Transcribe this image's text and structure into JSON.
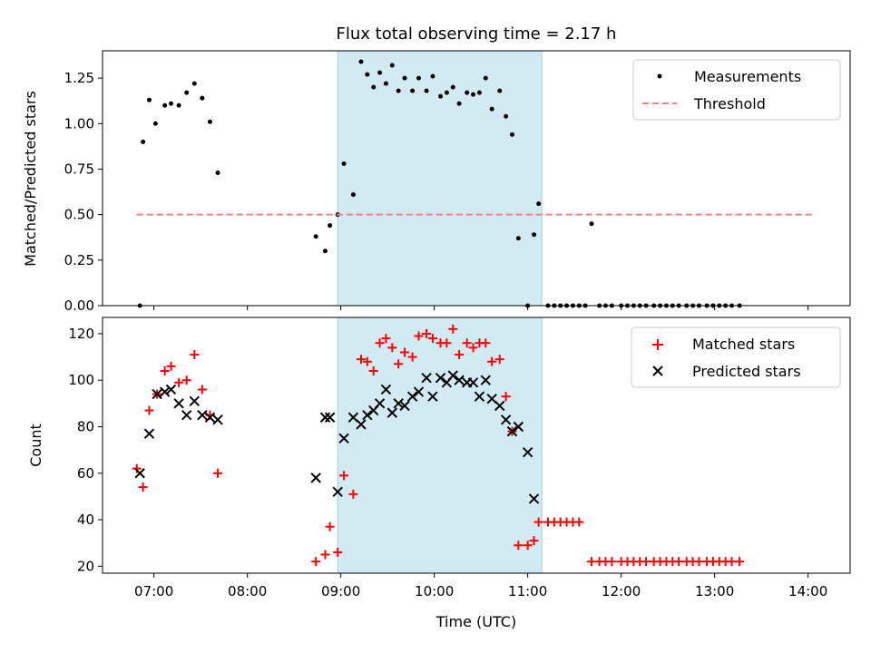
{
  "chart_data": [
    {
      "type": "scatter",
      "title": "Flux total observing time = 2.17 h",
      "xlabel": "",
      "ylabel": "Matched/Predicted stars",
      "ylim": [
        0,
        1.4
      ],
      "xlim": [
        "06:27",
        "14:27"
      ],
      "yticks": [
        "0.00",
        "0.25",
        "0.50",
        "0.75",
        "1.00",
        "1.25"
      ],
      "highlight_span": {
        "from": "08:58",
        "to": "11:09",
        "color": "#add8e6"
      },
      "legend_position": "top-right",
      "series": [
        {
          "name": "Measurements",
          "marker": "dot",
          "color": "#000000",
          "points": [
            [
              "06:51",
              0.0
            ],
            [
              "06:53",
              0.9
            ],
            [
              "06:57",
              1.13
            ],
            [
              "07:01",
              1.0
            ],
            [
              "07:07",
              1.1
            ],
            [
              "07:11",
              1.11
            ],
            [
              "07:16",
              1.1
            ],
            [
              "07:21",
              1.17
            ],
            [
              "07:26",
              1.22
            ],
            [
              "07:31",
              1.14
            ],
            [
              "07:36",
              1.01
            ],
            [
              "07:41",
              0.73
            ],
            [
              "08:44",
              0.38
            ],
            [
              "08:50",
              0.3
            ],
            [
              "08:53",
              0.44
            ],
            [
              "08:58",
              0.5
            ],
            [
              "09:02",
              0.78
            ],
            [
              "09:08",
              0.61
            ],
            [
              "09:13",
              1.34
            ],
            [
              "09:17",
              1.27
            ],
            [
              "09:21",
              1.2
            ],
            [
              "09:25",
              1.28
            ],
            [
              "09:29",
              1.22
            ],
            [
              "09:33",
              1.32
            ],
            [
              "09:37",
              1.18
            ],
            [
              "09:41",
              1.25
            ],
            [
              "09:46",
              1.18
            ],
            [
              "09:50",
              1.25
            ],
            [
              "09:55",
              1.18
            ],
            [
              "09:59",
              1.26
            ],
            [
              "10:04",
              1.15
            ],
            [
              "10:08",
              1.17
            ],
            [
              "10:12",
              1.2
            ],
            [
              "10:16",
              1.11
            ],
            [
              "10:21",
              1.17
            ],
            [
              "10:25",
              1.16
            ],
            [
              "10:29",
              1.17
            ],
            [
              "10:33",
              1.25
            ],
            [
              "10:37",
              1.08
            ],
            [
              "10:42",
              1.18
            ],
            [
              "10:46",
              1.04
            ],
            [
              "10:50",
              0.94
            ],
            [
              "10:54",
              0.37
            ],
            [
              "11:00",
              0.0
            ],
            [
              "11:04",
              0.39
            ],
            [
              "11:07",
              0.56
            ],
            [
              "11:13",
              0.0
            ],
            [
              "11:17",
              0.0
            ],
            [
              "11:21",
              0.0
            ],
            [
              "11:25",
              0.0
            ],
            [
              "11:29",
              0.0
            ],
            [
              "11:33",
              0.0
            ],
            [
              "11:37",
              0.0
            ],
            [
              "11:41",
              0.45
            ],
            [
              "11:46",
              0.0
            ],
            [
              "11:50",
              0.0
            ],
            [
              "11:54",
              0.0
            ],
            [
              "12:00",
              0.0
            ],
            [
              "12:04",
              0.0
            ],
            [
              "12:08",
              0.0
            ],
            [
              "12:12",
              0.0
            ],
            [
              "12:16",
              0.0
            ],
            [
              "12:21",
              0.0
            ],
            [
              "12:25",
              0.0
            ],
            [
              "12:29",
              0.0
            ],
            [
              "12:33",
              0.0
            ],
            [
              "12:37",
              0.0
            ],
            [
              "12:42",
              0.0
            ],
            [
              "12:46",
              0.0
            ],
            [
              "12:50",
              0.0
            ],
            [
              "12:55",
              0.0
            ],
            [
              "12:59",
              0.0
            ],
            [
              "13:03",
              0.0
            ],
            [
              "13:07",
              0.0
            ],
            [
              "13:11",
              0.0
            ],
            [
              "13:16",
              0.0
            ]
          ]
        },
        {
          "name": "Threshold",
          "marker": "dashed-line",
          "color": "#ff8080",
          "points": [
            [
              "06:49",
              0.5
            ],
            [
              "14:05",
              0.5
            ]
          ]
        }
      ]
    },
    {
      "type": "scatter",
      "title": "",
      "xlabel": "Time (UTC)",
      "ylabel": "Count",
      "ylim": [
        17,
        127
      ],
      "xlim": [
        "06:27",
        "14:27"
      ],
      "yticks": [
        "20",
        "40",
        "60",
        "80",
        "100",
        "120"
      ],
      "xticks": [
        "07:00",
        "08:00",
        "09:00",
        "10:00",
        "11:00",
        "12:00",
        "13:00",
        "14:00"
      ],
      "highlight_span": {
        "from": "08:58",
        "to": "11:09",
        "color": "#add8e6"
      },
      "legend_position": "top-right",
      "series": [
        {
          "name": "Matched stars",
          "marker": "plus",
          "color": "#ff0000",
          "points": [
            [
              "06:49",
              62
            ],
            [
              "06:53",
              54
            ],
            [
              "06:57",
              87
            ],
            [
              "07:02",
              94
            ],
            [
              "07:07",
              104
            ],
            [
              "07:11",
              106
            ],
            [
              "07:16",
              99
            ],
            [
              "07:21",
              100
            ],
            [
              "07:26",
              111
            ],
            [
              "07:31",
              96
            ],
            [
              "07:36",
              85
            ],
            [
              "07:41",
              60
            ],
            [
              "08:44",
              22
            ],
            [
              "08:50",
              25
            ],
            [
              "08:53",
              37
            ],
            [
              "08:58",
              26
            ],
            [
              "09:02",
              59
            ],
            [
              "09:08",
              51
            ],
            [
              "09:13",
              109
            ],
            [
              "09:17",
              108
            ],
            [
              "09:21",
              104
            ],
            [
              "09:25",
              116
            ],
            [
              "09:29",
              118
            ],
            [
              "09:33",
              114
            ],
            [
              "09:37",
              107
            ],
            [
              "09:41",
              112
            ],
            [
              "09:46",
              110
            ],
            [
              "09:50",
              119
            ],
            [
              "09:55",
              120
            ],
            [
              "09:59",
              118
            ],
            [
              "10:04",
              116
            ],
            [
              "10:08",
              116
            ],
            [
              "10:12",
              122
            ],
            [
              "10:16",
              111
            ],
            [
              "10:21",
              116
            ],
            [
              "10:25",
              114
            ],
            [
              "10:29",
              116
            ],
            [
              "10:33",
              116
            ],
            [
              "10:37",
              108
            ],
            [
              "10:42",
              109
            ],
            [
              "10:46",
              93
            ],
            [
              "10:50",
              78
            ],
            [
              "10:54",
              29
            ],
            [
              "11:00",
              29
            ],
            [
              "11:04",
              31
            ],
            [
              "11:07",
              39
            ],
            [
              "11:13",
              39
            ],
            [
              "11:17",
              39
            ],
            [
              "11:21",
              39
            ],
            [
              "11:25",
              39
            ],
            [
              "11:29",
              39
            ],
            [
              "11:33",
              39
            ],
            [
              "11:41",
              22
            ],
            [
              "11:46",
              22
            ],
            [
              "11:50",
              22
            ],
            [
              "11:54",
              22
            ],
            [
              "12:00",
              22
            ],
            [
              "12:04",
              22
            ],
            [
              "12:08",
              22
            ],
            [
              "12:12",
              22
            ],
            [
              "12:16",
              22
            ],
            [
              "12:21",
              22
            ],
            [
              "12:25",
              22
            ],
            [
              "12:29",
              22
            ],
            [
              "12:33",
              22
            ],
            [
              "12:37",
              22
            ],
            [
              "12:42",
              22
            ],
            [
              "12:46",
              22
            ],
            [
              "12:50",
              22
            ],
            [
              "12:55",
              22
            ],
            [
              "12:59",
              22
            ],
            [
              "13:03",
              22
            ],
            [
              "13:07",
              22
            ],
            [
              "13:11",
              22
            ],
            [
              "13:16",
              22
            ]
          ]
        },
        {
          "name": "Predicted stars",
          "marker": "x",
          "color": "#000000",
          "points": [
            [
              "06:51",
              60
            ],
            [
              "06:57",
              77
            ],
            [
              "07:02",
              94
            ],
            [
              "07:07",
              95
            ],
            [
              "07:11",
              96
            ],
            [
              "07:16",
              90
            ],
            [
              "07:21",
              85
            ],
            [
              "07:26",
              91
            ],
            [
              "07:31",
              85
            ],
            [
              "07:36",
              84
            ],
            [
              "07:41",
              83
            ],
            [
              "08:44",
              58
            ],
            [
              "08:50",
              84
            ],
            [
              "08:53",
              84
            ],
            [
              "08:58",
              52
            ],
            [
              "09:02",
              75
            ],
            [
              "09:08",
              84
            ],
            [
              "09:13",
              81
            ],
            [
              "09:17",
              85
            ],
            [
              "09:21",
              87
            ],
            [
              "09:25",
              90
            ],
            [
              "09:29",
              96
            ],
            [
              "09:33",
              86
            ],
            [
              "09:37",
              90
            ],
            [
              "09:41",
              89
            ],
            [
              "09:46",
              93
            ],
            [
              "09:50",
              95
            ],
            [
              "09:55",
              101
            ],
            [
              "09:59",
              93
            ],
            [
              "10:04",
              101
            ],
            [
              "10:08",
              99
            ],
            [
              "10:12",
              102
            ],
            [
              "10:16",
              100
            ],
            [
              "10:21",
              99
            ],
            [
              "10:25",
              99
            ],
            [
              "10:29",
              93
            ],
            [
              "10:33",
              100
            ],
            [
              "10:37",
              92
            ],
            [
              "10:42",
              89
            ],
            [
              "10:46",
              83
            ],
            [
              "10:50",
              78
            ],
            [
              "10:54",
              80
            ],
            [
              "11:00",
              69
            ],
            [
              "11:04",
              49
            ]
          ]
        }
      ]
    }
  ]
}
